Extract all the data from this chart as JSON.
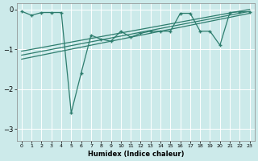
{
  "xlabel": "Humidex (Indice chaleur)",
  "background_color": "#cceaea",
  "line_color": "#2e7d6e",
  "xlim": [
    -0.5,
    23.5
  ],
  "ylim": [
    -3.3,
    0.15
  ],
  "yticks": [
    0,
    -1,
    -2,
    -3
  ],
  "xticks": [
    0,
    1,
    2,
    3,
    4,
    5,
    6,
    7,
    8,
    9,
    10,
    11,
    12,
    13,
    14,
    15,
    16,
    17,
    18,
    19,
    20,
    21,
    22,
    23
  ],
  "line1_x": [
    0,
    23
  ],
  "line1_y": [
    -1.25,
    -0.1
  ],
  "line2_x": [
    0,
    23
  ],
  "line2_y": [
    -1.15,
    -0.05
  ],
  "line3_x": [
    0,
    23
  ],
  "line3_y": [
    -1.05,
    0.0
  ],
  "scatter_x": [
    0,
    1,
    2,
    3,
    4,
    5,
    6,
    7,
    8,
    9,
    10,
    11,
    12,
    13,
    14,
    15,
    16,
    17,
    18,
    19,
    20,
    21,
    22,
    23
  ],
  "scatter_y": [
    -0.05,
    -0.15,
    -0.08,
    -0.08,
    -0.08,
    -2.6,
    -1.6,
    -0.65,
    -0.75,
    -0.8,
    -0.55,
    -0.7,
    -0.6,
    -0.55,
    -0.55,
    -0.55,
    -0.1,
    -0.1,
    -0.55,
    -0.55,
    -0.9,
    -0.08,
    -0.06,
    -0.06
  ]
}
